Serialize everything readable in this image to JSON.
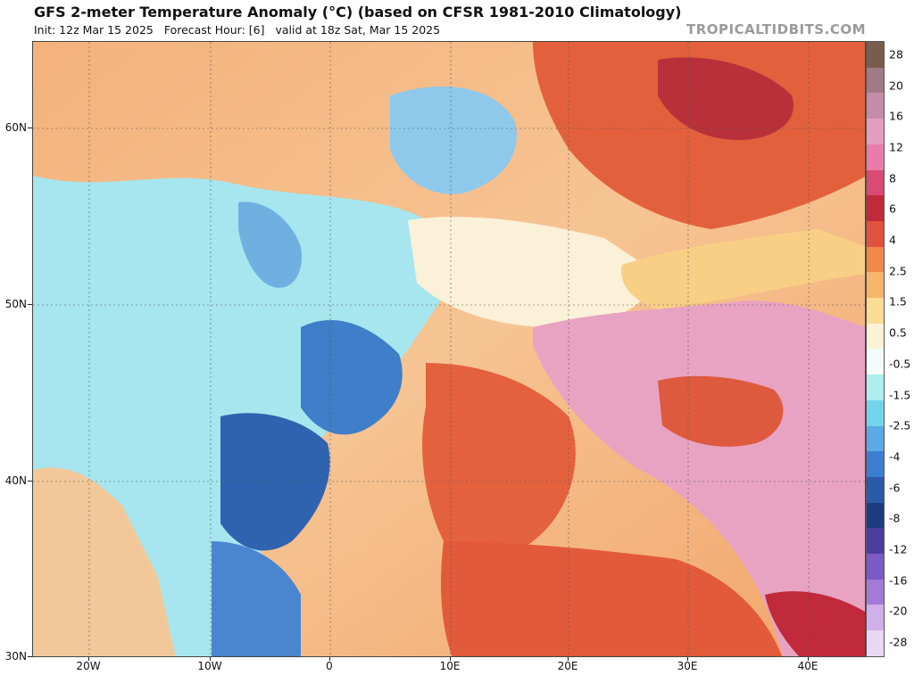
{
  "header": {
    "title": "GFS 2-meter Temperature Anomaly (°C) (based on CFSR 1981-2010 Climatology)",
    "init": "Init: 12z Mar 15 2025",
    "forecast_hour": "Forecast Hour: [6]",
    "valid": "valid at 18z Sat, Mar 15 2025",
    "brand": "TROPICALTIDBITS.COM"
  },
  "axes": {
    "lat_labels": [
      "60N",
      "50N",
      "40N",
      "30N"
    ],
    "lon_labels": [
      "20W",
      "10W",
      "0",
      "10E",
      "20E",
      "30E",
      "40E"
    ]
  },
  "colorbar": {
    "labels": [
      "28",
      "20",
      "16",
      "12",
      "8",
      "6",
      "4",
      "2.5",
      "1.5",
      "0.5",
      "-0.5",
      "-1.5",
      "-2.5",
      "-4",
      "-6",
      "-8",
      "-12",
      "-16",
      "-20",
      "-28"
    ],
    "colors": [
      "#7a5c4c",
      "#a07a86",
      "#c58ca8",
      "#e39ec0",
      "#e97ca8",
      "#d94a74",
      "#c2293a",
      "#e2513d",
      "#f0894a",
      "#f6b66a",
      "#fbdc96",
      "#fcf2d6",
      "#f4fbfb",
      "#aeeeee",
      "#74d4ec",
      "#5aaae6",
      "#3c7fd0",
      "#2a5aa8",
      "#1d3c80",
      "#4a3e9e",
      "#7b5bc6",
      "#a47ad8",
      "#cfb0ea",
      "#e8d8f2"
    ]
  }
}
